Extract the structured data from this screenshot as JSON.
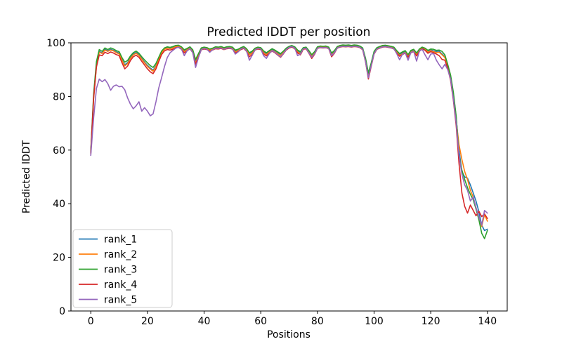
{
  "chart_data": {
    "type": "line",
    "title": "Predicted lDDT per position",
    "xlabel": "Positions",
    "ylabel": "Predicted lDDT",
    "xlim": [
      -7,
      147
    ],
    "ylim": [
      0,
      100
    ],
    "xticks": [
      0,
      20,
      40,
      60,
      80,
      100,
      120,
      140
    ],
    "yticks": [
      0,
      20,
      40,
      60,
      80,
      100
    ],
    "grid": false,
    "legend_position": "lower left",
    "x": [
      0,
      1,
      2,
      3,
      4,
      5,
      6,
      7,
      8,
      9,
      10,
      11,
      12,
      13,
      14,
      15,
      16,
      17,
      18,
      19,
      20,
      21,
      22,
      23,
      24,
      25,
      26,
      27,
      28,
      29,
      30,
      31,
      32,
      33,
      34,
      35,
      36,
      37,
      38,
      39,
      40,
      41,
      42,
      43,
      44,
      45,
      46,
      47,
      48,
      49,
      50,
      51,
      52,
      53,
      54,
      55,
      56,
      57,
      58,
      59,
      60,
      61,
      62,
      63,
      64,
      65,
      66,
      67,
      68,
      69,
      70,
      71,
      72,
      73,
      74,
      75,
      76,
      77,
      78,
      79,
      80,
      81,
      82,
      83,
      84,
      85,
      86,
      87,
      88,
      89,
      90,
      91,
      92,
      93,
      94,
      95,
      96,
      97,
      98,
      99,
      100,
      101,
      102,
      103,
      104,
      105,
      106,
      107,
      108,
      109,
      110,
      111,
      112,
      113,
      114,
      115,
      116,
      117,
      118,
      119,
      120,
      121,
      122,
      123,
      124,
      125,
      126,
      127,
      128,
      129,
      130,
      131,
      132,
      133,
      134,
      135,
      136,
      137,
      138,
      139,
      140
    ],
    "series": [
      {
        "name": "rank_1",
        "color": "#1f77b4",
        "values": [
          59,
          80,
          92,
          96.8,
          96.2,
          97.6,
          97,
          97.6,
          97.2,
          96.6,
          96.2,
          93.8,
          91.8,
          92.6,
          94.5,
          95.8,
          96.4,
          95.6,
          94.2,
          92.8,
          91.6,
          90.6,
          89.8,
          91.5,
          94,
          96.5,
          97.8,
          98.2,
          98,
          98.3,
          98.8,
          98.9,
          98.2,
          97,
          97.6,
          98.3,
          97,
          92.8,
          95.5,
          97.9,
          98.2,
          98,
          97.4,
          97.8,
          98.3,
          98.2,
          98.4,
          98,
          98.3,
          98.4,
          98.2,
          96.9,
          97.3,
          98,
          98.4,
          97.5,
          95.9,
          96.5,
          97.8,
          98.2,
          98,
          96.6,
          95.9,
          96.8,
          97.5,
          97,
          96.2,
          95.6,
          96.6,
          97.8,
          98.5,
          98.8,
          98.2,
          96.9,
          96.3,
          98,
          98.2,
          96.8,
          95.2,
          96.4,
          98.3,
          98.6,
          98.5,
          98.6,
          98.2,
          95.8,
          96.8,
          98.4,
          98.8,
          99,
          98.9,
          99,
          98.8,
          99,
          98.9,
          98.6,
          97.8,
          93.5,
          87.5,
          92,
          96.5,
          98,
          98.4,
          98.8,
          98.9,
          98.7,
          98.5,
          98.2,
          96.8,
          95.6,
          96.2,
          96.8,
          95.2,
          96.9,
          97.3,
          95.8,
          97.4,
          98.1,
          97.6,
          96.8,
          97.4,
          97,
          96.8,
          96.9,
          95.8,
          94.8,
          91.5,
          87.5,
          81,
          72,
          60,
          52,
          50,
          49.5,
          47,
          44,
          41,
          37,
          32,
          30,
          30.5
        ]
      },
      {
        "name": "rank_2",
        "color": "#ff7f0e",
        "values": [
          58.5,
          79,
          91.5,
          96.5,
          96,
          97.3,
          96.8,
          97.3,
          97,
          96.3,
          95.9,
          93.5,
          91.4,
          92.2,
          94.2,
          95.5,
          96.1,
          95.3,
          93.9,
          92.5,
          91.2,
          90.2,
          89.4,
          91.2,
          93.8,
          96.3,
          97.6,
          98,
          97.8,
          98.1,
          98.6,
          98.7,
          98,
          96.7,
          97.4,
          98.1,
          96.7,
          92.4,
          95.2,
          97.7,
          98,
          97.8,
          97.2,
          97.6,
          98.1,
          98,
          98.2,
          97.8,
          98.1,
          98.2,
          98,
          96.6,
          97.1,
          97.8,
          98.2,
          97.2,
          95.6,
          96.2,
          97.6,
          98,
          97.8,
          96.3,
          95.6,
          96.5,
          97.2,
          96.7,
          95.9,
          95.3,
          96.3,
          97.6,
          98.3,
          98.6,
          98,
          96.6,
          96,
          97.8,
          98,
          96.5,
          94.9,
          96.1,
          98.1,
          98.4,
          98.3,
          98.4,
          98,
          95.5,
          96.5,
          98.2,
          98.6,
          98.8,
          98.7,
          98.8,
          98.6,
          98.8,
          98.7,
          98.4,
          97.5,
          93.2,
          87.2,
          91.7,
          96.2,
          97.8,
          98.2,
          98.6,
          98.7,
          98.5,
          98.3,
          98,
          96.5,
          95.3,
          95.9,
          96.5,
          94.9,
          96.6,
          97,
          95.5,
          97.1,
          98.3,
          97.8,
          96.5,
          97.1,
          96.7,
          96.4,
          96.5,
          95.5,
          94.5,
          91.2,
          87,
          80,
          71,
          62,
          56.5,
          52,
          49,
          45,
          42.5,
          38.5,
          35,
          31.5,
          36,
          33.5
        ]
      },
      {
        "name": "rank_3",
        "color": "#2ca02c",
        "values": [
          59.5,
          81,
          93,
          97.5,
          96.8,
          98.1,
          97.5,
          98.1,
          97.7,
          97.1,
          96.7,
          94.5,
          92.8,
          93.4,
          95.1,
          96.3,
          96.9,
          96.1,
          94.8,
          93.6,
          92.5,
          91.5,
          90.8,
          92.3,
          94.6,
          96.9,
          98.1,
          98.5,
          98.3,
          98.6,
          99,
          99.1,
          98.5,
          97.4,
          97.9,
          98.5,
          97.4,
          93.8,
          96,
          98.1,
          98.4,
          98.2,
          97.7,
          98,
          98.5,
          98.4,
          98.6,
          98.2,
          98.5,
          98.6,
          98.4,
          97.3,
          97.6,
          98.2,
          98.6,
          97.8,
          96.3,
          96.9,
          98,
          98.4,
          98.2,
          97,
          96.3,
          97.1,
          97.8,
          97.3,
          96.6,
          96,
          96.9,
          98,
          98.7,
          99,
          98.5,
          97.3,
          96.7,
          98.2,
          98.4,
          97.1,
          95.6,
          96.7,
          98.5,
          98.8,
          98.7,
          98.8,
          98.4,
          96.2,
          97.1,
          98.6,
          99,
          99.2,
          99.1,
          99.2,
          99,
          99.2,
          99.1,
          98.8,
          98.1,
          94.2,
          88.8,
          92.5,
          96.8,
          98.2,
          98.6,
          99,
          99.1,
          98.9,
          98.7,
          98.4,
          97.1,
          96,
          96.6,
          97.1,
          95.6,
          97.2,
          97.6,
          96.2,
          97.7,
          98.4,
          98,
          97.2,
          97.7,
          97.6,
          97.2,
          97.3,
          96.8,
          95.5,
          92,
          88,
          81.5,
          72.5,
          58,
          52.5,
          49,
          46,
          43.5,
          41.5,
          38,
          34,
          29,
          27,
          30
        ]
      },
      {
        "name": "rank_4",
        "color": "#d62728",
        "values": [
          58.8,
          79.5,
          91,
          95.5,
          95.2,
          96.5,
          96,
          96.6,
          96.2,
          95.6,
          95.2,
          92.6,
          90.3,
          91.3,
          93.4,
          94.8,
          95.4,
          94.6,
          93.1,
          91.7,
          90.3,
          89.2,
          88.5,
          90.3,
          93,
          95.6,
          97,
          97.5,
          97.3,
          97.6,
          98.2,
          98.3,
          97.6,
          96.2,
          97,
          97.8,
          96.3,
          92,
          94.7,
          97.4,
          97.7,
          97.5,
          96.8,
          97.3,
          97.8,
          97.7,
          97.9,
          97.5,
          97.8,
          97.9,
          97.7,
          96.2,
          96.7,
          97.5,
          97.9,
          96.8,
          94.8,
          95.7,
          97.3,
          97.7,
          97.5,
          95.8,
          95.1,
          96.1,
          96.9,
          96.3,
          95.4,
          94.6,
          95.9,
          97.3,
          98.1,
          98.4,
          97.8,
          96.2,
          95.5,
          97.6,
          97.8,
          96.1,
          94.2,
          95.7,
          97.9,
          98.2,
          98.1,
          98.2,
          97.8,
          94.8,
          96.1,
          98,
          98.4,
          98.6,
          98.5,
          98.6,
          98.4,
          98.6,
          98.5,
          98.2,
          97.4,
          92.8,
          86.5,
          91.2,
          95.8,
          97.6,
          98,
          98.4,
          98.5,
          98.3,
          98.1,
          97.7,
          96.2,
          95,
          95.6,
          96.2,
          94.6,
          96.3,
          96.7,
          95.1,
          96.8,
          97.8,
          97.2,
          96.1,
          96.7,
          96.3,
          95.8,
          95.2,
          93.8,
          93.5,
          90.5,
          86,
          78.5,
          69,
          55,
          44,
          39,
          36.5,
          39.5,
          37.5,
          35.5,
          37.2,
          35.2,
          36.2,
          34.5
        ]
      },
      {
        "name": "rank_5",
        "color": "#9467bd",
        "values": [
          58,
          72,
          83,
          86.5,
          85.5,
          86.3,
          84.8,
          82.3,
          83.8,
          84.3,
          83.6,
          83.8,
          82.5,
          79.5,
          77.1,
          75.4,
          76.5,
          78,
          74.5,
          75.8,
          74.5,
          72.8,
          73.5,
          78,
          83.2,
          87,
          91.1,
          94.5,
          96.3,
          97.2,
          98,
          98.4,
          97.7,
          95.2,
          97,
          97.9,
          96.4,
          90.8,
          94.5,
          97.5,
          97.9,
          97.6,
          96.5,
          97.4,
          98,
          97.9,
          98.1,
          97.6,
          98,
          98.1,
          97.8,
          95.8,
          96.6,
          97.7,
          98.1,
          96.9,
          93.5,
          95.4,
          97.4,
          97.9,
          97.7,
          95.2,
          94.2,
          96,
          97.1,
          96.5,
          95.5,
          94.8,
          96,
          97.5,
          98.3,
          98.6,
          98,
          95.2,
          95.8,
          97.8,
          98,
          96.2,
          94.6,
          95.9,
          98,
          98.3,
          98.2,
          98.3,
          97.9,
          95.2,
          96.3,
          98.1,
          98.5,
          98.7,
          98.6,
          98.7,
          98.5,
          98.7,
          98.6,
          98.3,
          97.6,
          93,
          87,
          91.5,
          96,
          97.7,
          98.1,
          98.5,
          98.6,
          98.4,
          98.2,
          97.8,
          96,
          93.7,
          95.7,
          96.3,
          93.5,
          96.4,
          96.8,
          93.2,
          96.9,
          97.6,
          95.5,
          93.7,
          95.8,
          96,
          93.5,
          91.8,
          90.3,
          92,
          90,
          86.5,
          79,
          70,
          58,
          51,
          47,
          45,
          41,
          42.5,
          38.5,
          35,
          32,
          37.5,
          36.5
        ]
      }
    ]
  }
}
